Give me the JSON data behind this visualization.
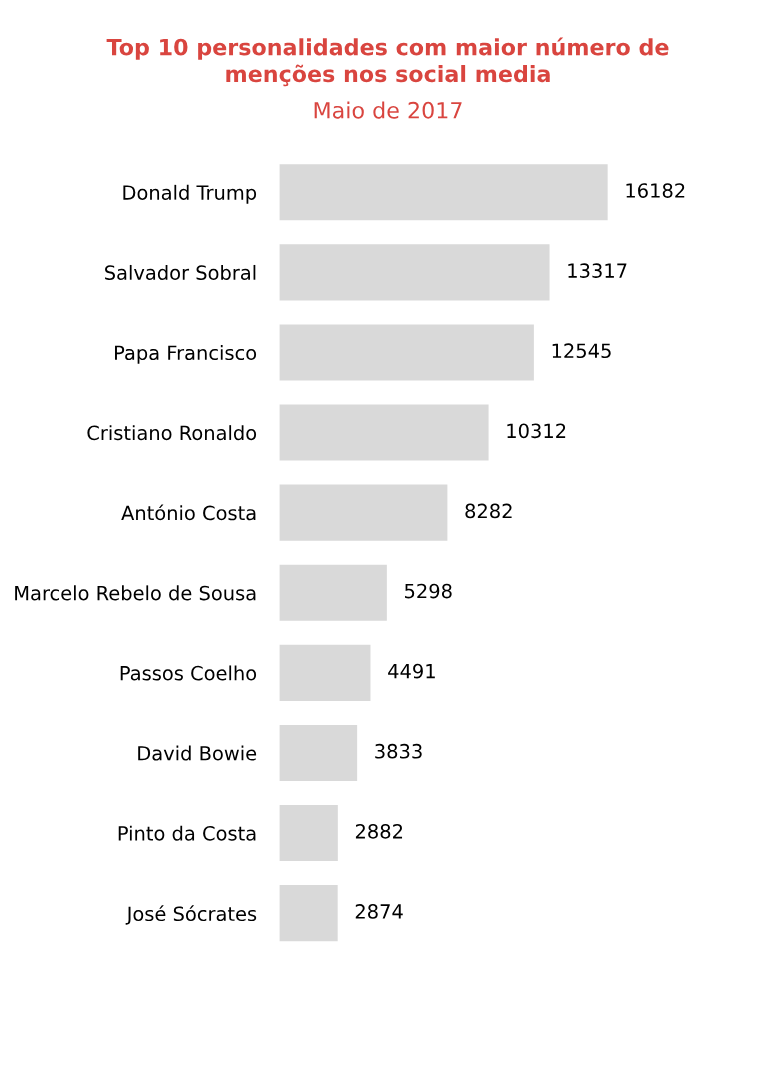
{
  "chart_data": {
    "type": "bar",
    "orientation": "horizontal",
    "title": "Top 10 personalidades com maior número de\nmenções nos social media",
    "subtitle": "Maio de 2017",
    "categories": [
      "Donald Trump",
      "Salvador Sobral",
      "Papa Francisco",
      "Cristiano Ronaldo",
      "António Costa",
      "Marcelo Rebelo de Sousa",
      "Passos Coelho",
      "David Bowie",
      "Pinto da Costa",
      "José Sócrates"
    ],
    "values": [
      16182,
      13317,
      12545,
      10312,
      8282,
      5298,
      4491,
      3833,
      2882,
      2874
    ],
    "color": "#d9d9d9",
    "data_labels": true,
    "grid": false,
    "legend": false
  }
}
